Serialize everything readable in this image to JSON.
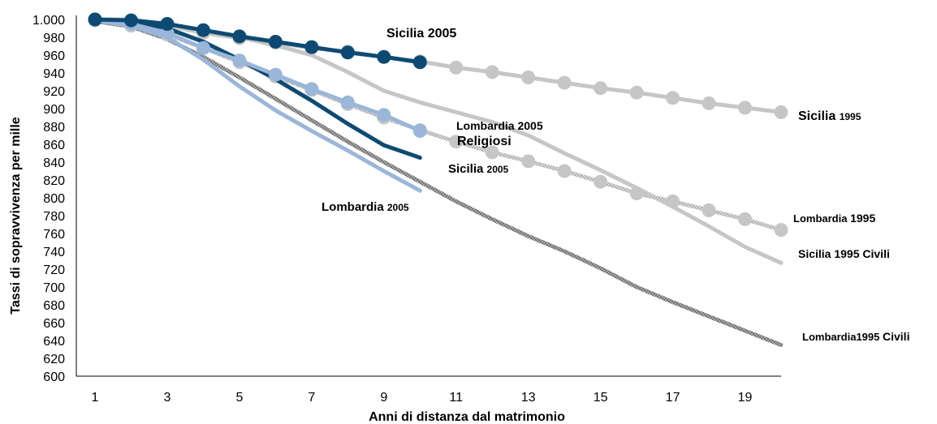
{
  "chart_data": {
    "type": "line",
    "x": [
      1,
      2,
      3,
      4,
      5,
      6,
      7,
      8,
      9,
      10,
      11,
      12,
      13,
      14,
      15,
      16,
      17,
      18,
      19,
      20
    ],
    "xlim": [
      1,
      20
    ],
    "ylim": [
      600,
      1000
    ],
    "x_ticks": [
      1,
      3,
      5,
      7,
      9,
      11,
      13,
      15,
      17,
      19
    ],
    "y_ticks": [
      600,
      620,
      640,
      660,
      680,
      700,
      720,
      740,
      760,
      780,
      800,
      820,
      840,
      860,
      880,
      900,
      920,
      940,
      960,
      980,
      1000
    ],
    "y_tick_labels": [
      "600",
      "620",
      "640",
      "660",
      "680",
      "700",
      "720",
      "740",
      "760",
      "780",
      "800",
      "820",
      "840",
      "860",
      "880",
      "900",
      "920",
      "940",
      "960",
      "980",
      "1.000"
    ],
    "xlabel": "Anni di distanza dal matrimonio",
    "ylabel": "Tassi di sopravvivenza per mille",
    "grid": false,
    "legend": "none",
    "colors": {
      "gray": "#c6c6c6",
      "dark_blue": "#0d4a73",
      "light_blue": "#9ab6d9",
      "dark_gray": "#8c8c8c"
    },
    "series": [
      {
        "label_key": "sicilia_1995_civili",
        "color": "gray",
        "style": "solid",
        "x": [
          1,
          2,
          3,
          4,
          5,
          6,
          7,
          8,
          9,
          10,
          11,
          12,
          13,
          14,
          15,
          16,
          17,
          18,
          19,
          20
        ],
        "values": [
          1000,
          1000,
          995,
          987,
          980,
          971,
          960,
          941,
          920,
          907,
          896,
          885,
          870,
          850,
          831,
          811,
          790,
          768,
          745,
          727
        ]
      },
      {
        "label_key": "lombardia_1995_civili",
        "color": "dark_gray",
        "style": "hatched",
        "x": [
          1,
          2,
          3,
          4,
          5,
          6,
          7,
          8,
          9,
          10,
          11,
          12,
          13,
          14,
          15,
          16,
          17,
          18,
          19,
          20
        ],
        "values": [
          998,
          992,
          978,
          958,
          935,
          911,
          887,
          863,
          840,
          818,
          796,
          776,
          757,
          740,
          721,
          700,
          683,
          667,
          651,
          635
        ]
      },
      {
        "label_key": "sicilia_1995",
        "color": "gray",
        "style": "solid",
        "markers": true,
        "x": [
          1,
          2,
          3,
          4,
          5,
          6,
          7,
          8,
          9,
          10,
          11,
          12,
          13,
          14,
          15,
          16,
          17,
          18,
          19,
          20
        ],
        "values": [
          1000,
          998,
          993,
          985,
          979,
          974,
          968,
          964,
          958,
          953,
          946,
          941,
          935,
          929,
          923,
          918,
          912,
          906,
          901,
          896
        ]
      },
      {
        "label_key": "lombardia_1995",
        "color": "gray",
        "style": "hatched",
        "markers": true,
        "x": [
          1,
          2,
          3,
          4,
          5,
          6,
          7,
          8,
          9,
          10,
          11,
          12,
          13,
          14,
          15,
          16,
          17,
          18,
          19,
          20
        ],
        "values": [
          999,
          993,
          983,
          968,
          952,
          936,
          921,
          905,
          890,
          876,
          863,
          851,
          841,
          830,
          818,
          805,
          796,
          786,
          776,
          764
        ]
      },
      {
        "label_key": "lombardia_2005",
        "color": "light_blue",
        "style": "solid",
        "x": [
          1,
          2,
          3,
          4,
          5,
          6,
          7,
          8,
          9,
          10
        ],
        "values": [
          999,
          993,
          980,
          955,
          925,
          898,
          875,
          853,
          830,
          808
        ]
      },
      {
        "label_key": "sicilia_2005_civili",
        "color": "dark_blue",
        "style": "solid",
        "x": [
          1,
          2,
          3,
          4,
          5,
          6,
          7,
          8,
          9,
          10
        ],
        "values": [
          1000,
          998,
          990,
          975,
          955,
          933,
          909,
          883,
          859,
          845
        ]
      },
      {
        "label_key": "lombardia_2005_religiosi",
        "color": "light_blue",
        "style": "solid",
        "markers": true,
        "x": [
          1,
          2,
          3,
          4,
          5,
          6,
          7,
          8,
          9,
          10
        ],
        "values": [
          1000,
          995,
          985,
          968,
          954,
          938,
          922,
          907,
          893,
          875
        ]
      },
      {
        "label_key": "sicilia_2005_religiosi",
        "color": "dark_blue",
        "style": "solid",
        "markers": true,
        "x": [
          1,
          2,
          3,
          4,
          5,
          6,
          7,
          8,
          9,
          10
        ],
        "values": [
          1000,
          999,
          995,
          988,
          981,
          975,
          969,
          963,
          958,
          952
        ]
      }
    ],
    "annotations": {
      "sicilia_2005_top": {
        "text": "Sicilia 2005"
      },
      "sicilia_1995": {
        "main": "Sicilia",
        "small": "1995"
      },
      "lombardia_2005_a": {
        "text": "Lombardia 2005"
      },
      "religiosi": {
        "text": "Religiosi"
      },
      "sicilia_2005_mid": {
        "main": "Sicilia",
        "small": "2005"
      },
      "lombardia_2005_b": {
        "main": "Lombardia",
        "small": "2005"
      },
      "lombardia_1995": {
        "main": "Lombardia",
        "small": "1995"
      },
      "sicilia_1995_civili": {
        "main": "Sicilia",
        "small": "1995 Civili"
      },
      "lombardia_1995_civili": {
        "main": "Lombardia1995",
        "small": "Civili"
      }
    }
  }
}
